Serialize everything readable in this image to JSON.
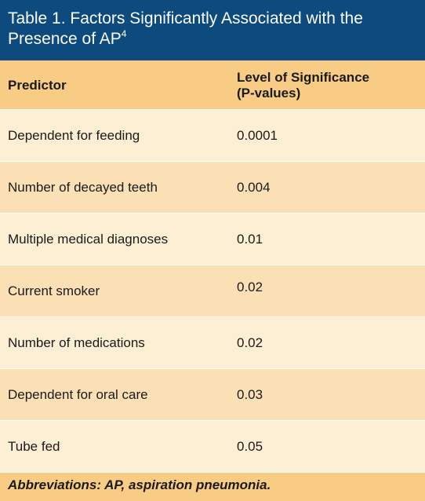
{
  "title": {
    "text": "Table 1. Factors Significantly Associated with the Presence of AP",
    "superscript": "4"
  },
  "header": {
    "predictor": "Predictor",
    "significance_line1": "Level of Significance",
    "significance_line2": "(P-values)"
  },
  "rows": [
    {
      "predictor": "Dependent for feeding",
      "p_value": "0.0001"
    },
    {
      "predictor": "Number of decayed teeth",
      "p_value": "0.004"
    },
    {
      "predictor": "Multiple medical diagnoses",
      "p_value": "0.01"
    },
    {
      "predictor": "Current smoker",
      "p_value": "0.02"
    },
    {
      "predictor": "Number of medications",
      "p_value": "0.02"
    },
    {
      "predictor": "Dependent for oral care",
      "p_value": "0.03"
    },
    {
      "predictor": "Tube fed",
      "p_value": "0.05"
    }
  ],
  "footnote": "Abbreviations: AP, aspiration pneumonia.",
  "colors": {
    "title_bg": "#0d4a7e",
    "header_bg": "#f8cc84",
    "row_light": "#fdefd4",
    "row_mid": "#fbe0b6"
  }
}
